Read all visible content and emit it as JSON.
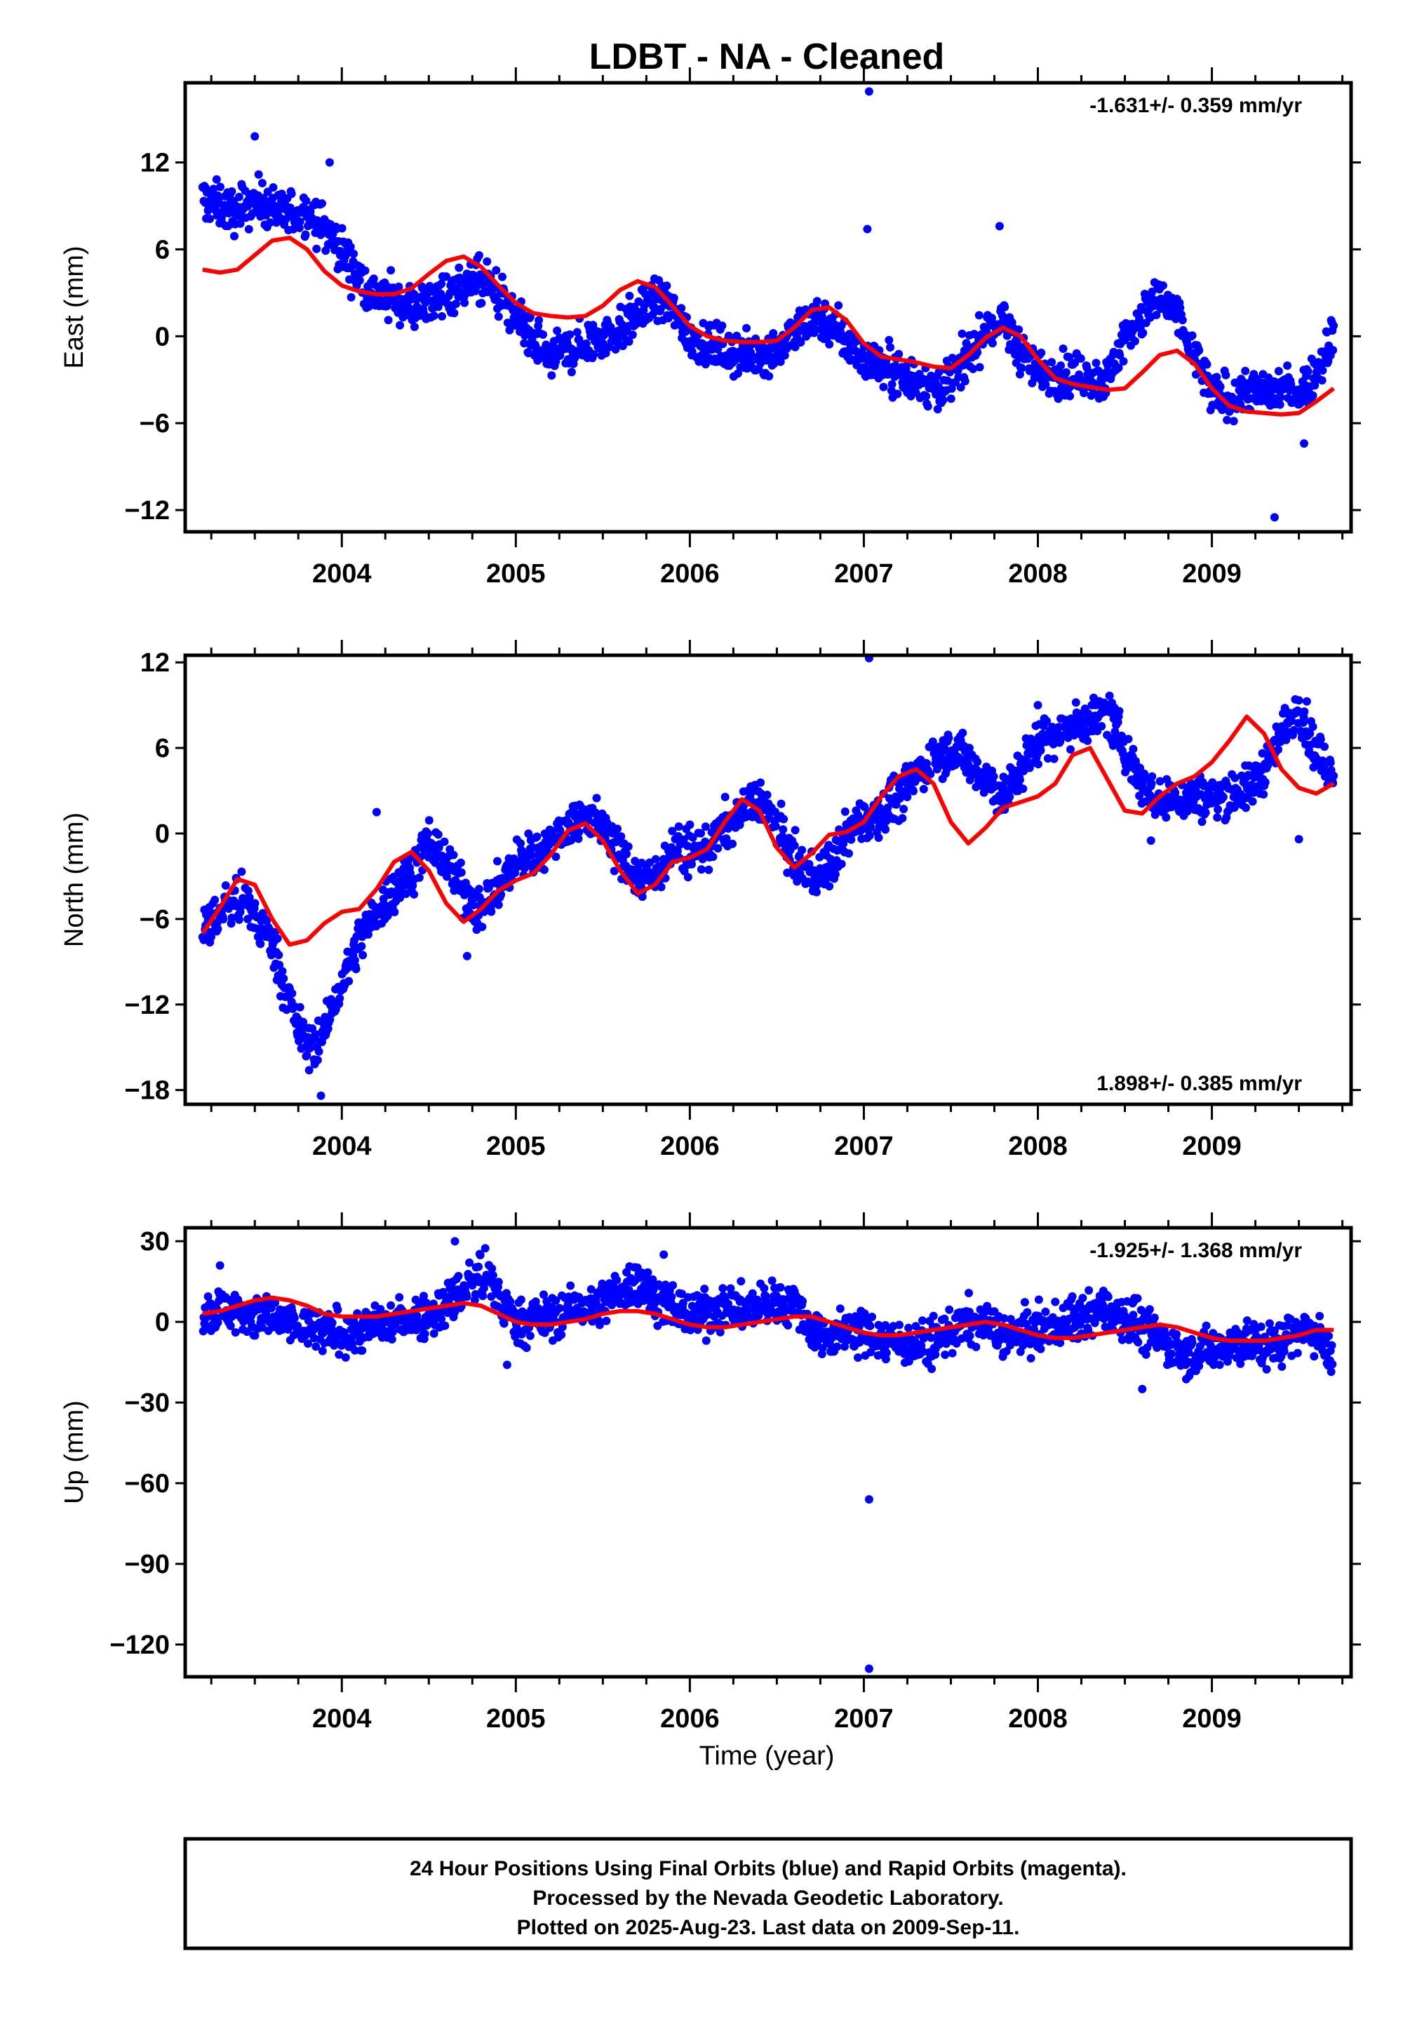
{
  "title": "LDBT  - NA - Cleaned",
  "xlabel": "Time (year)",
  "footer": {
    "line1": "24 Hour Positions Using Final Orbits (blue) and Rapid Orbits (magenta).",
    "line2": "Processed by the Nevada Geodetic Laboratory.",
    "line3": "Plotted on 2025-Aug-23. Last data on 2009-Sep-11."
  },
  "colors": {
    "points": "#0000ff",
    "fit": "#ff0000",
    "frame": "#000000"
  },
  "chart_data": [
    {
      "type": "scatter",
      "component": "east",
      "ylabel": "East (mm)",
      "rate_label": "-1.631+/- 0.359 mm/yr",
      "rate_position": "top-right",
      "xlim": [
        2003.1,
        2009.8
      ],
      "ylim": [
        -13.5,
        17.5
      ],
      "x_ticks": [
        2004,
        2005,
        2006,
        2007,
        2008,
        2009
      ],
      "y_ticks": [
        12,
        6,
        0,
        -6,
        -12
      ],
      "y_tick_labels": [
        "12",
        "6",
        "0",
        "−6",
        "−12"
      ],
      "series": [
        {
          "kind": "points",
          "x": [
            2003.2,
            2003.3,
            2003.4,
            2003.5,
            2003.6,
            2003.7,
            2003.8,
            2003.9,
            2004.0,
            2004.1,
            2004.2,
            2004.3,
            2004.4,
            2004.5,
            2004.6,
            2004.7,
            2004.8,
            2004.9,
            2005.0,
            2005.1,
            2005.2,
            2005.3,
            2005.4,
            2005.5,
            2005.6,
            2005.7,
            2005.8,
            2005.9,
            2006.0,
            2006.1,
            2006.2,
            2006.3,
            2006.4,
            2006.5,
            2006.6,
            2006.7,
            2006.8,
            2006.9,
            2007.0,
            2007.1,
            2007.2,
            2007.3,
            2007.4,
            2007.5,
            2007.6,
            2007.7,
            2007.8,
            2007.9,
            2008.0,
            2008.4,
            2008.5,
            2008.6,
            2008.7,
            2008.8,
            2008.9,
            2009.0,
            2009.1,
            2009.2,
            2009.3,
            2009.4,
            2009.5,
            2009.6,
            2009.7
          ],
          "y": [
            9.5,
            9.0,
            8.5,
            9.5,
            8.8,
            8.2,
            8.6,
            7.5,
            6.0,
            4.0,
            2.8,
            2.5,
            2.0,
            2.3,
            3.0,
            3.5,
            3.8,
            3.0,
            1.0,
            -0.5,
            -1.5,
            -1.0,
            -0.5,
            0.0,
            0.5,
            1.5,
            2.5,
            2.0,
            0.0,
            -0.5,
            -1.0,
            -1.5,
            -1.2,
            -1.0,
            0.0,
            1.5,
            1.0,
            -0.5,
            -1.5,
            -2.0,
            -2.5,
            -3.0,
            -3.5,
            -3.0,
            -1.5,
            0.5,
            1.0,
            -1.0,
            -2.5,
            -3.0,
            0.0,
            1.5,
            2.5,
            1.5,
            -1.5,
            -4.0,
            -4.5,
            -3.5,
            -4.0,
            -3.5,
            -4.0,
            -2.5,
            0.5
          ]
        },
        {
          "kind": "outliers",
          "x": [
            2003.5,
            2003.93,
            2007.03,
            2007.02,
            2007.78,
            2009.36,
            2009.53
          ],
          "y": [
            13.8,
            12.0,
            16.9,
            7.4,
            7.6,
            -12.5,
            -7.4
          ]
        },
        {
          "kind": "fit",
          "x": [
            2003.2,
            2003.3,
            2003.4,
            2003.5,
            2003.6,
            2003.7,
            2003.8,
            2003.9,
            2004.0,
            2004.1,
            2004.2,
            2004.3,
            2004.4,
            2004.5,
            2004.6,
            2004.7,
            2004.8,
            2004.9,
            2005.0,
            2005.1,
            2005.2,
            2005.3,
            2005.4,
            2005.5,
            2005.6,
            2005.7,
            2005.8,
            2005.9,
            2006.0,
            2006.1,
            2006.2,
            2006.3,
            2006.4,
            2006.5,
            2006.6,
            2006.7,
            2006.8,
            2006.9,
            2007.0,
            2007.1,
            2007.2,
            2007.3,
            2007.4,
            2007.5,
            2007.6,
            2007.7,
            2007.8,
            2007.9,
            2008.0,
            2008.1,
            2008.2,
            2008.3,
            2008.4,
            2008.5,
            2008.6,
            2008.7,
            2008.8,
            2008.9,
            2009.0,
            2009.1,
            2009.2,
            2009.3,
            2009.4,
            2009.5,
            2009.6,
            2009.7
          ],
          "y": [
            4.6,
            4.4,
            4.6,
            5.6,
            6.6,
            6.8,
            6.0,
            4.5,
            3.5,
            3.1,
            2.9,
            2.9,
            3.3,
            4.3,
            5.2,
            5.5,
            4.8,
            3.5,
            2.3,
            1.6,
            1.4,
            1.3,
            1.4,
            2.1,
            3.2,
            3.8,
            3.4,
            2.1,
            0.7,
            0.0,
            -0.3,
            -0.4,
            -0.4,
            -0.3,
            0.6,
            1.8,
            2.0,
            1.1,
            -0.5,
            -1.4,
            -1.6,
            -1.8,
            -2.1,
            -2.2,
            -1.3,
            -0.1,
            0.6,
            0.0,
            -1.6,
            -2.9,
            -3.3,
            -3.5,
            -3.7,
            -3.6,
            -2.5,
            -1.3,
            -1.0,
            -1.9,
            -3.6,
            -4.8,
            -5.2,
            -5.3,
            -5.4,
            -5.3,
            -4.5,
            -3.6
          ]
        }
      ]
    },
    {
      "type": "scatter",
      "component": "north",
      "ylabel": "North (mm)",
      "rate_label": "1.898+/- 0.385 mm/yr",
      "rate_position": "bottom-right",
      "xlim": [
        2003.1,
        2009.8
      ],
      "ylim": [
        -19,
        12.5
      ],
      "x_ticks": [
        2004,
        2005,
        2006,
        2007,
        2008,
        2009
      ],
      "y_ticks": [
        12,
        6,
        0,
        -6,
        -12,
        -18
      ],
      "y_tick_labels": [
        "12",
        "6",
        "0",
        "−6",
        "−12",
        "−18"
      ],
      "series": [
        {
          "kind": "points",
          "x": [
            2003.2,
            2003.3,
            2003.4,
            2003.5,
            2003.6,
            2003.7,
            2003.8,
            2003.9,
            2004.0,
            2004.1,
            2004.2,
            2004.3,
            2004.4,
            2004.5,
            2004.6,
            2004.7,
            2004.8,
            2005.0,
            2005.1,
            2005.2,
            2005.3,
            2005.4,
            2005.5,
            2005.6,
            2005.7,
            2005.8,
            2005.9,
            2006.0,
            2006.1,
            2006.2,
            2006.3,
            2006.4,
            2006.5,
            2006.6,
            2006.7,
            2006.8,
            2006.9,
            2007.0,
            2007.1,
            2007.2,
            2007.3,
            2007.4,
            2007.5,
            2007.6,
            2007.7,
            2007.8,
            2008.0,
            2008.4,
            2008.5,
            2008.6,
            2008.7,
            2008.8,
            2008.9,
            2009.0,
            2009.1,
            2009.2,
            2009.3,
            2009.4,
            2009.5,
            2009.6,
            2009.7
          ],
          "y": [
            -7.0,
            -5.5,
            -4.5,
            -6.0,
            -7.5,
            -12.0,
            -15.0,
            -14.0,
            -10.5,
            -7.5,
            -5.5,
            -4.0,
            -2.5,
            -0.5,
            -2.0,
            -4.0,
            -5.5,
            -2.0,
            -1.5,
            -0.5,
            0.5,
            1.5,
            0.5,
            -1.5,
            -3.0,
            -3.0,
            -1.0,
            -1.5,
            -1.0,
            0.5,
            1.5,
            2.5,
            0.5,
            -2.0,
            -3.0,
            -2.5,
            0.0,
            1.0,
            1.5,
            2.5,
            4.0,
            5.5,
            6.0,
            5.0,
            4.0,
            2.5,
            6.5,
            8.5,
            6.0,
            3.5,
            2.0,
            2.5,
            2.5,
            2.5,
            3.0,
            3.0,
            4.5,
            7.0,
            9.0,
            5.5,
            4.0
          ]
        },
        {
          "kind": "outliers",
          "x": [
            2003.88,
            2004.2,
            2004.72,
            2007.03,
            2008.0,
            2008.65,
            2009.5
          ],
          "y": [
            -18.4,
            1.5,
            -8.6,
            12.3,
            9.0,
            -0.5,
            -0.4
          ]
        },
        {
          "kind": "fit",
          "x": [
            2003.2,
            2003.3,
            2003.4,
            2003.5,
            2003.6,
            2003.7,
            2003.8,
            2003.9,
            2004.0,
            2004.1,
            2004.2,
            2004.3,
            2004.4,
            2004.5,
            2004.6,
            2004.7,
            2004.8,
            2004.9,
            2005.0,
            2005.1,
            2005.2,
            2005.3,
            2005.4,
            2005.5,
            2005.6,
            2005.7,
            2005.8,
            2005.9,
            2006.0,
            2006.1,
            2006.2,
            2006.3,
            2006.4,
            2006.5,
            2006.6,
            2006.7,
            2006.8,
            2006.9,
            2007.0,
            2007.1,
            2007.2,
            2007.3,
            2007.4,
            2007.5,
            2007.6,
            2007.7,
            2007.8,
            2007.9,
            2008.0,
            2008.1,
            2008.2,
            2008.3,
            2008.4,
            2008.5,
            2008.6,
            2008.7,
            2008.8,
            2008.9,
            2009.0,
            2009.1,
            2009.2,
            2009.3,
            2009.4,
            2009.5,
            2009.6,
            2009.7
          ],
          "y": [
            -7.0,
            -5.2,
            -3.2,
            -3.6,
            -6.0,
            -7.8,
            -7.5,
            -6.3,
            -5.5,
            -5.3,
            -3.9,
            -2.0,
            -1.3,
            -2.6,
            -4.9,
            -6.2,
            -5.3,
            -4.0,
            -3.3,
            -2.8,
            -1.5,
            0.2,
            0.7,
            -0.5,
            -2.6,
            -4.2,
            -3.6,
            -2.0,
            -1.7,
            -1.1,
            0.8,
            2.4,
            1.6,
            -1.0,
            -2.4,
            -1.4,
            -0.1,
            0.1,
            0.8,
            2.6,
            4.0,
            4.5,
            3.5,
            0.8,
            -0.7,
            0.4,
            1.8,
            2.2,
            2.6,
            3.5,
            5.5,
            6.0,
            3.8,
            1.6,
            1.4,
            2.6,
            3.5,
            4.0,
            5.0,
            6.5,
            8.2,
            7.0,
            4.5,
            3.2,
            2.8,
            3.5
          ]
        }
      ]
    },
    {
      "type": "scatter",
      "component": "up",
      "ylabel": "Up (mm)",
      "rate_label": "-1.925+/- 1.368 mm/yr",
      "rate_position": "top-right",
      "xlim": [
        2003.1,
        2009.8
      ],
      "ylim": [
        -132,
        35
      ],
      "x_ticks": [
        2004,
        2005,
        2006,
        2007,
        2008,
        2009
      ],
      "y_ticks": [
        30,
        0,
        -30,
        -60,
        -90,
        -120
      ],
      "y_tick_labels": [
        "30",
        "0",
        "−30",
        "−60",
        "−90",
        "−120"
      ],
      "series": [
        {
          "kind": "points",
          "x": [
            2003.2,
            2003.3,
            2003.4,
            2003.5,
            2003.6,
            2003.7,
            2003.8,
            2003.9,
            2004.0,
            2004.1,
            2004.2,
            2004.3,
            2004.4,
            2004.5,
            2004.6,
            2004.7,
            2004.8,
            2005.0,
            2005.1,
            2005.2,
            2005.3,
            2005.4,
            2005.5,
            2005.6,
            2005.7,
            2005.8,
            2005.9,
            2006.0,
            2006.1,
            2006.2,
            2006.3,
            2006.4,
            2006.5,
            2006.6,
            2006.7,
            2006.8,
            2006.9,
            2007.0,
            2007.1,
            2007.2,
            2007.3,
            2007.4,
            2007.5,
            2007.6,
            2007.7,
            2007.8,
            2008.0,
            2008.4,
            2008.5,
            2008.6,
            2008.7,
            2008.8,
            2008.9,
            2009.0,
            2009.1,
            2009.2,
            2009.3,
            2009.4,
            2009.5,
            2009.6,
            2009.7
          ],
          "y": [
            3,
            5,
            4,
            2,
            1,
            -1,
            -3,
            -4,
            -5,
            -3,
            -1,
            0,
            1,
            3,
            6,
            12,
            18,
            0,
            1,
            2,
            4,
            5,
            7,
            12,
            15,
            10,
            6,
            2,
            4,
            5,
            5,
            6,
            7,
            8,
            -3,
            -5,
            -3,
            -4,
            -6,
            -7,
            -8,
            -9,
            -3,
            0,
            -1,
            -5,
            -4,
            5,
            2,
            -2,
            -6,
            -10,
            -12,
            -10,
            -8,
            -7,
            -9,
            -8,
            -2,
            -5,
            -12
          ]
        },
        {
          "kind": "outliers",
          "x": [
            2003.3,
            2004.65,
            2004.95,
            2005.85,
            2007.03,
            2007.03,
            2008.6
          ],
          "y": [
            21,
            30,
            -16,
            25,
            -66,
            -129,
            -25
          ]
        },
        {
          "kind": "fit",
          "x": [
            2003.2,
            2003.3,
            2003.4,
            2003.5,
            2003.6,
            2003.7,
            2003.8,
            2003.9,
            2004.0,
            2004.1,
            2004.2,
            2004.3,
            2004.4,
            2004.5,
            2004.6,
            2004.7,
            2004.8,
            2004.9,
            2005.0,
            2005.1,
            2005.2,
            2005.3,
            2005.4,
            2005.5,
            2005.6,
            2005.7,
            2005.8,
            2005.9,
            2006.0,
            2006.1,
            2006.2,
            2006.3,
            2006.4,
            2006.5,
            2006.6,
            2006.7,
            2006.8,
            2006.9,
            2007.0,
            2007.1,
            2007.2,
            2007.3,
            2007.4,
            2007.5,
            2007.6,
            2007.7,
            2007.8,
            2007.9,
            2008.0,
            2008.1,
            2008.2,
            2008.3,
            2008.4,
            2008.5,
            2008.6,
            2008.7,
            2008.8,
            2008.9,
            2009.0,
            2009.1,
            2009.2,
            2009.3,
            2009.4,
            2009.5,
            2009.6,
            2009.7
          ],
          "y": [
            3,
            4,
            6,
            8,
            9,
            8,
            6,
            3,
            2,
            2,
            2,
            3,
            4,
            5,
            6,
            7,
            6,
            3,
            0,
            -1,
            -1,
            0,
            1,
            3,
            4,
            4,
            3,
            1,
            -1,
            -2,
            -2,
            -1,
            0,
            1,
            2,
            2,
            0,
            -2,
            -4,
            -5,
            -5,
            -4,
            -3,
            -2,
            -1,
            0,
            -1,
            -3,
            -5,
            -6,
            -6,
            -5,
            -4,
            -3,
            -2,
            -1,
            -2,
            -4,
            -6,
            -7,
            -7,
            -7,
            -6,
            -5,
            -3,
            -3
          ]
        }
      ]
    }
  ]
}
